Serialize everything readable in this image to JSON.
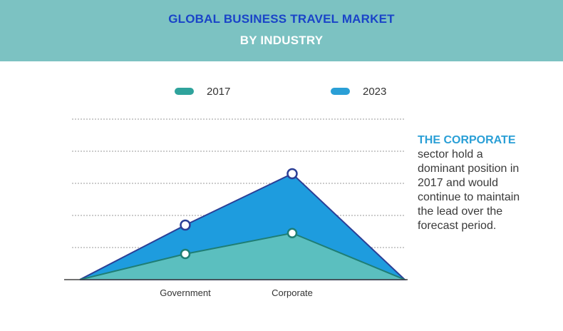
{
  "header": {
    "title": "GLOBAL BUSINESS TRAVEL MARKET",
    "subtitle": "BY INDUSTRY"
  },
  "colors": {
    "banner": "#7cc2c2",
    "series_2017": "#5bbfbf",
    "series_2017_line": "#1f7e74",
    "series_2023": "#1e9cde",
    "series_2023_line": "#2b3f96",
    "marker_2023": "#2b3f96",
    "marker_2017": "#1f7e74",
    "gridline": "#9a9a9a",
    "annotation_lead": "#2a9fd6"
  },
  "annotation": {
    "lead": "THE CORPORATE",
    "lines": [
      "sector hold a",
      "dominant position in",
      "2017 and would",
      "continue to maintain",
      "the lead over the",
      "forecast period."
    ]
  },
  "chart_data": {
    "type": "area",
    "categories": [
      "Government",
      "Corporate"
    ],
    "series": [
      {
        "name": "2017",
        "values": [
          0.8,
          1.45
        ]
      },
      {
        "name": "2023",
        "values": [
          1.7,
          3.3
        ]
      }
    ],
    "ylim": [
      0,
      5
    ],
    "grid": true,
    "legend": "top"
  }
}
